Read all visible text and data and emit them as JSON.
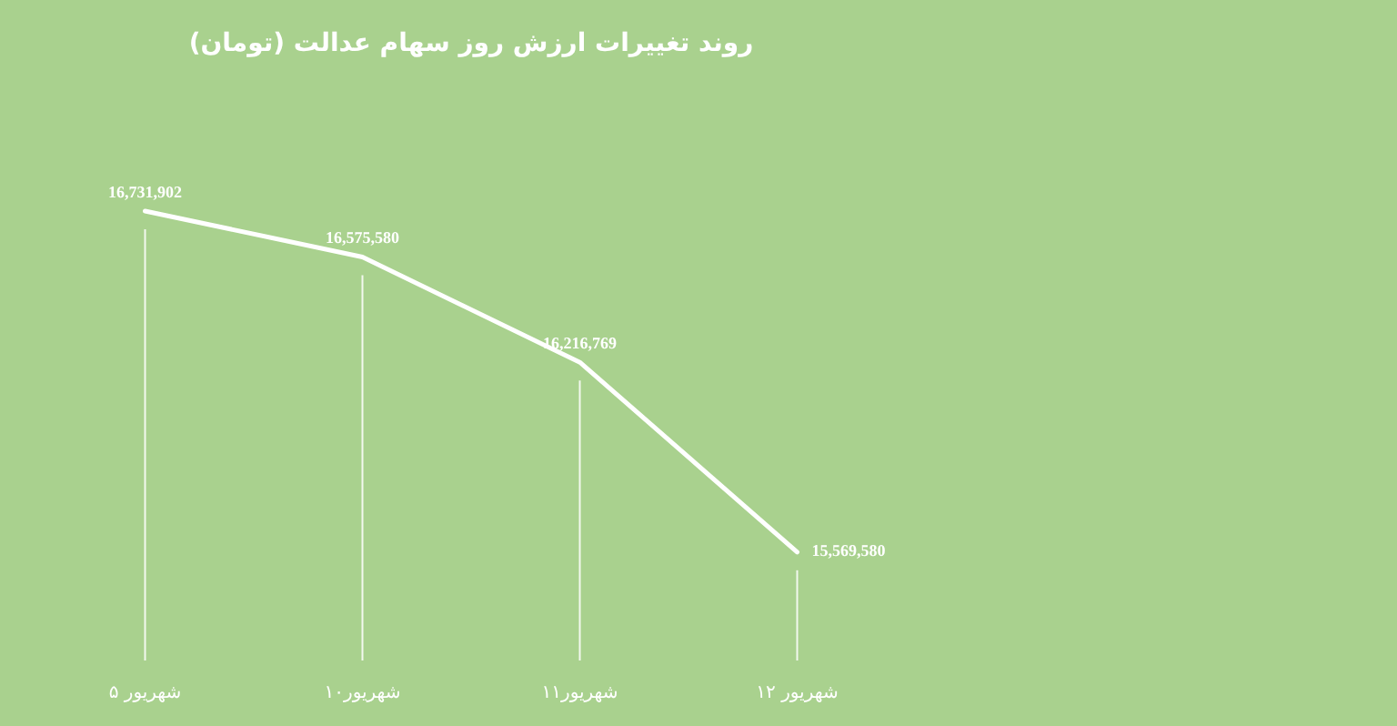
{
  "chart_data": {
    "type": "line",
    "title": "روند تغییرات ارزش روز سهام عدالت (تومان)",
    "categories": [
      "۵ شهریور",
      "۱۰شهریور",
      "۱۱شهریور",
      "۱۲ شهریور"
    ],
    "values": [
      16731902,
      16575580,
      16216769,
      15569580
    ],
    "value_labels": [
      "16,731,902",
      "16,575,580",
      "16,216,769",
      "15,569,580"
    ],
    "color": "#ffffff",
    "grid": "x",
    "legend": false,
    "tick_labels": "x"
  }
}
